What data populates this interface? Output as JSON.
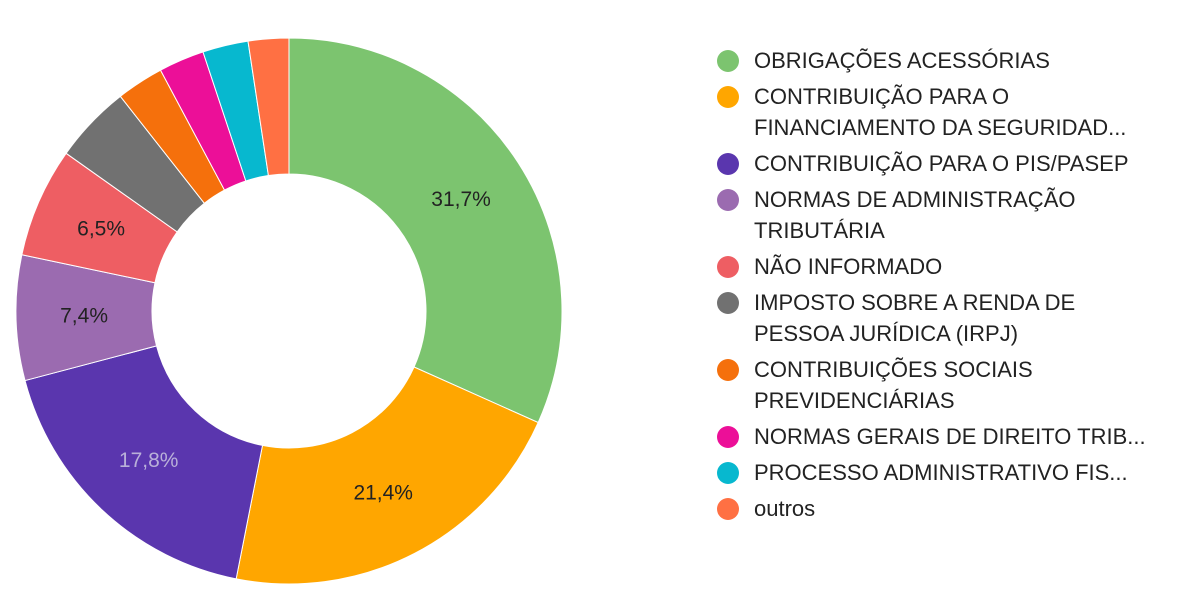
{
  "chart_data": {
    "type": "pie",
    "title": "",
    "donut": true,
    "legend_position": "right",
    "series": [
      {
        "label": "OBRIGAÇÕES ACESSÓRIAS",
        "value": 31.7,
        "color": "#7CC46F",
        "data_label": "31,7%",
        "label_color": "#222222"
      },
      {
        "label": "CONTRIBUIÇÃO PARA O FINANCIAMENTO DA SEGURIDAD...",
        "value": 21.4,
        "color": "#FFA600",
        "data_label": "21,4%",
        "label_color": "#222222"
      },
      {
        "label": "CONTRIBUIÇÃO PARA O PIS/PASEP",
        "value": 17.8,
        "color": "#5A36AE",
        "data_label": "17,8%",
        "label_color": "#B9B0D9"
      },
      {
        "label": "NORMAS DE ADMINISTRAÇÃO TRIBUTÁRIA",
        "value": 7.4,
        "color": "#9B6BB0",
        "data_label": "7,4%",
        "label_color": "#222222"
      },
      {
        "label": "NÃO INFORMADO",
        "value": 6.5,
        "color": "#EE5E63",
        "data_label": "6,5%",
        "label_color": "#222222"
      },
      {
        "label": "IMPOSTO SOBRE A RENDA DE PESSOA JURÍDICA (IRPJ)",
        "value": 4.6,
        "color": "#717171",
        "data_label": "",
        "label_color": "#222222"
      },
      {
        "label": "CONTRIBUIÇÕES SOCIAIS PREVIDENCIÁRIAS",
        "value": 2.8,
        "color": "#F5700C",
        "data_label": "",
        "label_color": "#222222"
      },
      {
        "label": "NORMAS GERAIS DE DIREITO TRIB...",
        "value": 2.7,
        "color": "#EC0F98",
        "data_label": "",
        "label_color": "#222222"
      },
      {
        "label": "PROCESSO ADMINISTRATIVO FIS...",
        "value": 2.7,
        "color": "#07B8CF",
        "data_label": "",
        "label_color": "#222222"
      },
      {
        "label": "outros",
        "value": 2.4,
        "color": "#FF7043",
        "data_label": "",
        "label_color": "#222222"
      }
    ]
  }
}
